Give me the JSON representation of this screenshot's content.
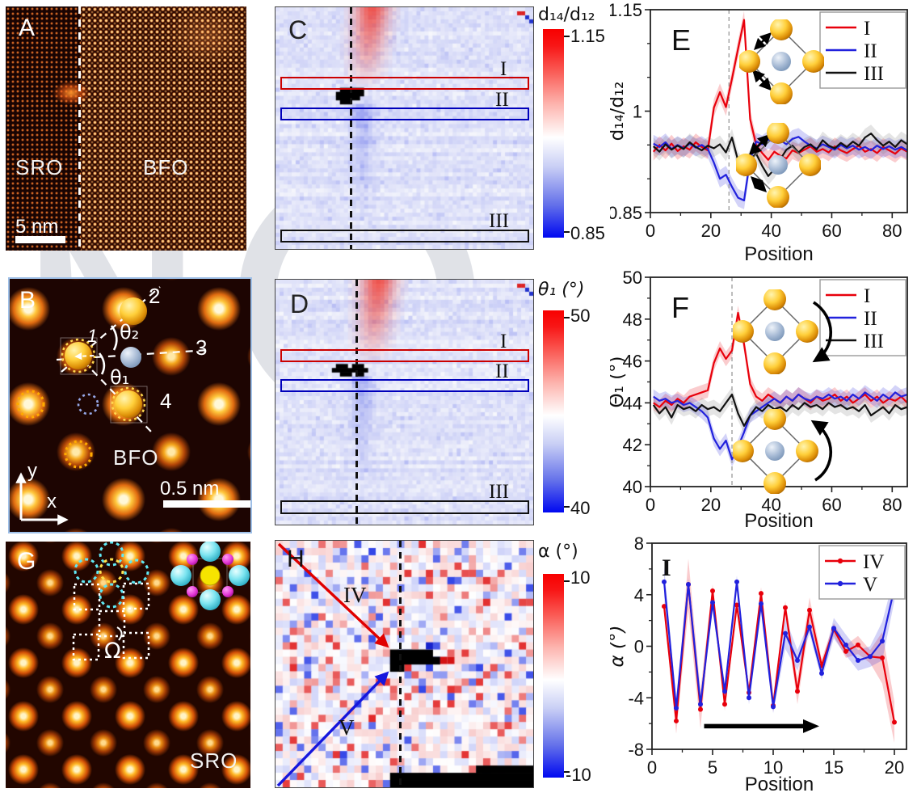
{
  "watermark": {
    "text": "N"
  },
  "panels": {
    "A": {
      "letter": "A",
      "left_label": "SRO",
      "right_label": "BFO",
      "scale_bar": "5 nm"
    },
    "B": {
      "letter": "B",
      "material": "BFO",
      "scale_bar": "0.5 nm",
      "atoms": {
        "a1": "1",
        "a2": "2",
        "a3": "3",
        "a4": "4"
      },
      "angles": {
        "theta2": "θ₂",
        "theta1": "θ₁"
      },
      "axes": {
        "x": "x",
        "y": "y"
      }
    },
    "C": {
      "letter": "C",
      "boxes": [
        "I",
        "II",
        "III"
      ],
      "colorbar": {
        "title": "d₁₄/d₁₂",
        "max": "1.15",
        "min": "0.85"
      }
    },
    "D": {
      "letter": "D",
      "boxes": [
        "I",
        "II",
        "III"
      ],
      "colorbar": {
        "title": "θ₁ (°)",
        "max": "50",
        "min": "40"
      }
    },
    "G": {
      "letter": "G",
      "material": "SRO",
      "omega": "Ω"
    },
    "H": {
      "letter": "H",
      "arrows": [
        "IV",
        "V"
      ],
      "colorbar": {
        "title": "α (°)",
        "max": "10",
        "min": "-10"
      }
    }
  },
  "chart_data": [
    {
      "id": "E",
      "type": "line",
      "panel_letter": "E",
      "xlabel": "Position",
      "ylabel": "d₁₄/d₁₂",
      "xlim": [
        0,
        85
      ],
      "ylim": [
        0.85,
        1.15
      ],
      "xticks": [
        0,
        20,
        40,
        60,
        80
      ],
      "yticks": [
        0.85,
        1,
        1.15
      ],
      "ytick_labels": [
        "0.85",
        "1",
        "1.15"
      ],
      "minor_x": 10,
      "minor_y": 0.05,
      "vline": 26,
      "x_start": 1,
      "x_step": 2,
      "legend_position": "top-right",
      "grid": false,
      "series": [
        {
          "name": "I",
          "color": "#e8000b",
          "band": 0.013,
          "values": [
            0.94,
            0.95,
            0.942,
            0.952,
            0.941,
            0.948,
            0.943,
            0.954,
            0.947,
            0.942,
            1.005,
            1.028,
            1.006,
            1.048,
            1.092,
            1.135,
            0.988,
            0.95,
            0.938,
            0.928,
            0.94,
            0.934,
            0.93,
            0.942,
            0.938,
            0.943,
            0.948,
            0.94,
            0.944,
            0.939,
            0.948,
            0.942,
            0.938,
            0.944,
            0.949,
            0.94,
            0.944,
            0.938,
            0.947,
            0.942,
            0.937,
            0.945,
            0.94
          ]
        },
        {
          "name": "II",
          "color": "#2121dd",
          "band": 0.013,
          "values": [
            0.952,
            0.947,
            0.954,
            0.944,
            0.95,
            0.945,
            0.952,
            0.946,
            0.95,
            0.944,
            0.924,
            0.9,
            0.906,
            0.888,
            0.872,
            0.868,
            0.928,
            0.955,
            0.951,
            0.958,
            0.954,
            0.957,
            0.951,
            0.959,
            0.962,
            0.955,
            0.949,
            0.945,
            0.951,
            0.947,
            0.943,
            0.95,
            0.945,
            0.949,
            0.943,
            0.947,
            0.942,
            0.949,
            0.944,
            0.948,
            0.943,
            0.947,
            0.942
          ]
        },
        {
          "name": "III",
          "color": "#111111",
          "band": 0.013,
          "values": [
            0.948,
            0.94,
            0.951,
            0.943,
            0.949,
            0.944,
            0.954,
            0.947,
            0.942,
            0.949,
            0.945,
            0.951,
            0.939,
            0.961,
            0.927,
            0.915,
            0.929,
            0.937,
            0.919,
            0.904,
            0.914,
            0.929,
            0.943,
            0.949,
            0.939,
            0.947,
            0.951,
            0.943,
            0.957,
            0.949,
            0.945,
            0.953,
            0.947,
            0.955,
            0.949,
            0.961,
            0.967,
            0.957,
            0.949,
            0.955,
            0.947,
            0.957,
            0.951
          ]
        }
      ]
    },
    {
      "id": "F",
      "type": "line",
      "panel_letter": "F",
      "xlabel": "Position",
      "ylabel": "Θ₁ (°)",
      "xlim": [
        0,
        85
      ],
      "ylim": [
        40,
        50
      ],
      "xticks": [
        0,
        20,
        40,
        60,
        80
      ],
      "yticks": [
        40,
        42,
        44,
        46,
        48,
        50
      ],
      "ytick_labels": [
        "40",
        "42",
        "44",
        "46",
        "48",
        "50"
      ],
      "minor_x": 10,
      "minor_y": 1,
      "vline": 27,
      "x_start": 1,
      "x_step": 2,
      "legend_position": "top-right",
      "grid": false,
      "series": [
        {
          "name": "I",
          "color": "#e8000b",
          "band": 0.35,
          "values": [
            44.0,
            43.8,
            44.1,
            43.9,
            44.2,
            44.0,
            44.3,
            44.4,
            44.5,
            44.6,
            45.9,
            46.6,
            46.1,
            46.5,
            48.3,
            46.8,
            44.9,
            44.3,
            44.1,
            44.4,
            44.2,
            44.0,
            44.3,
            44.1,
            44.4,
            44.2,
            44.0,
            44.3,
            44.1,
            44.2,
            44.4,
            44.1,
            44.3,
            44.0,
            44.2,
            44.4,
            44.1,
            44.3,
            44.0,
            44.2,
            44.1,
            44.3,
            44.0
          ]
        },
        {
          "name": "II",
          "color": "#2121dd",
          "band": 0.35,
          "values": [
            44.3,
            44.1,
            44.2,
            44.0,
            44.1,
            43.9,
            44.0,
            43.8,
            43.6,
            43.3,
            42.3,
            41.8,
            42.2,
            41.3,
            41.9,
            42.6,
            43.4,
            43.6,
            43.8,
            44.0,
            44.2,
            44.0,
            44.3,
            44.1,
            44.4,
            44.2,
            44.1,
            44.3,
            44.2,
            44.4,
            44.2,
            44.3,
            44.1,
            44.4,
            44.2,
            44.5,
            44.3,
            44.1,
            44.4,
            44.2,
            44.5,
            44.3,
            44.4
          ]
        },
        {
          "name": "III",
          "color": "#111111",
          "band": 0.35,
          "values": [
            43.9,
            43.5,
            43.8,
            43.3,
            43.9,
            43.7,
            43.8,
            43.6,
            43.9,
            43.7,
            43.8,
            43.6,
            44.0,
            44.4,
            43.5,
            42.9,
            43.4,
            43.8,
            43.6,
            43.9,
            43.7,
            43.8,
            43.6,
            43.9,
            43.7,
            44.0,
            43.8,
            43.9,
            43.7,
            44.0,
            43.8,
            43.9,
            43.7,
            43.8,
            43.6,
            43.9,
            43.4,
            43.6,
            43.8,
            43.5,
            43.9,
            43.7,
            43.8
          ]
        }
      ]
    },
    {
      "id": "I",
      "type": "line",
      "panel_letter": "I",
      "xlabel": "Position",
      "ylabel": "α (°)",
      "xlim": [
        0,
        21
      ],
      "ylim": [
        -8,
        8
      ],
      "xticks": [
        0,
        5,
        10,
        15,
        20
      ],
      "yticks": [
        -8,
        -4,
        0,
        4,
        8
      ],
      "ytick_labels": [
        "-8",
        "-4",
        "0",
        "4",
        "8"
      ],
      "minor_x": 2.5,
      "minor_y": 2,
      "x_start": 1,
      "x_step": 1,
      "markers": true,
      "legend_position": "top-right",
      "grid": false,
      "arrow": {
        "x1": 4.3,
        "y1": -6.2,
        "x2": 12.6,
        "y2": -6.2
      },
      "series": [
        {
          "name": "IV",
          "color": "#e8000b",
          "band": [
            0.5,
            1.0,
            2.0,
            1.5,
            0.5,
            0.5,
            0.5,
            0.5,
            0.5,
            0.5,
            0.5,
            1.0,
            1.0,
            0.5,
            0.5,
            0.5,
            0.7,
            0.5,
            2.0,
            1.6
          ],
          "values": [
            3.1,
            -5.8,
            4.8,
            -4.9,
            4.3,
            -4.5,
            3.2,
            -3.6,
            4.1,
            -4.6,
            3.0,
            -3.5,
            2.8,
            -1.5,
            1.3,
            -0.4,
            0.1,
            -0.8,
            -0.9,
            -5.9
          ]
        },
        {
          "name": "V",
          "color": "#2121dd",
          "band": [
            1.2,
            0.6,
            0.5,
            0.5,
            0.5,
            0.5,
            0.5,
            0.5,
            0.5,
            0.5,
            1.2,
            0.8,
            0.5,
            0.5,
            0.8,
            0.8,
            0.8,
            0.8,
            1.5,
            1.0
          ],
          "values": [
            5.0,
            -4.8,
            4.8,
            -4.5,
            3.4,
            -3.5,
            5.0,
            -4.0,
            3.3,
            -4.7,
            1.0,
            -1.1,
            1.5,
            -2.1,
            1.4,
            0.1,
            -1.1,
            -0.8,
            0.4,
            4.5
          ]
        }
      ]
    }
  ]
}
